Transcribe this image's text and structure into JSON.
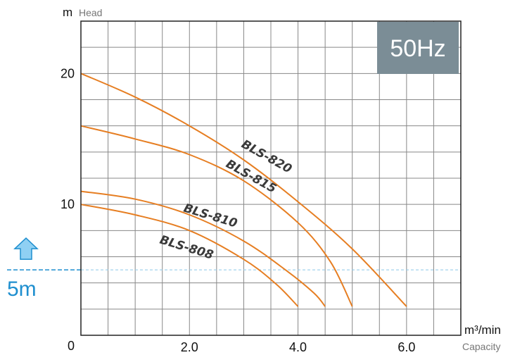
{
  "chart_data": {
    "type": "line",
    "title": "",
    "badge": "50Hz",
    "y_unit": "m",
    "ylabel": "Head",
    "x_unit": "m³/min",
    "xlabel": "Capacity",
    "origin_label": "0",
    "xlim": [
      0,
      7.0
    ],
    "ylim": [
      0,
      24
    ],
    "x_tick_labels": [
      {
        "value": 2.0,
        "label": "2.0"
      },
      {
        "value": 4.0,
        "label": "4.0"
      },
      {
        "value": 6.0,
        "label": "6.0"
      }
    ],
    "y_tick_labels": [
      {
        "value": 10,
        "label": "10"
      },
      {
        "value": 20,
        "label": "20"
      }
    ],
    "grid": true,
    "grid_x_step": 0.5,
    "grid_y_step": 2,
    "reference_line": {
      "value": 5,
      "label": "5m",
      "color": "#1f8fcf"
    },
    "series_color": "#e67e22",
    "series": [
      {
        "name": "BLS-820",
        "x": [
          0,
          1.0,
          2.0,
          3.0,
          4.0,
          5.0,
          6.0
        ],
        "y": [
          20.0,
          18.2,
          16.0,
          13.4,
          10.2,
          6.6,
          2.2
        ]
      },
      {
        "name": "BLS-815",
        "x": [
          0,
          1.0,
          2.0,
          3.0,
          4.0,
          4.6,
          5.0
        ],
        "y": [
          16.0,
          15.0,
          13.8,
          11.8,
          8.6,
          5.6,
          2.2
        ]
      },
      {
        "name": "BLS-810",
        "x": [
          0,
          1.0,
          2.0,
          3.0,
          3.8,
          4.3,
          4.5
        ],
        "y": [
          11.0,
          10.4,
          9.2,
          7.2,
          4.9,
          3.2,
          2.2
        ]
      },
      {
        "name": "BLS-808",
        "x": [
          0,
          1.0,
          2.0,
          3.0,
          3.6,
          4.0
        ],
        "y": [
          10.0,
          9.2,
          8.0,
          5.8,
          3.9,
          2.2
        ]
      }
    ]
  }
}
